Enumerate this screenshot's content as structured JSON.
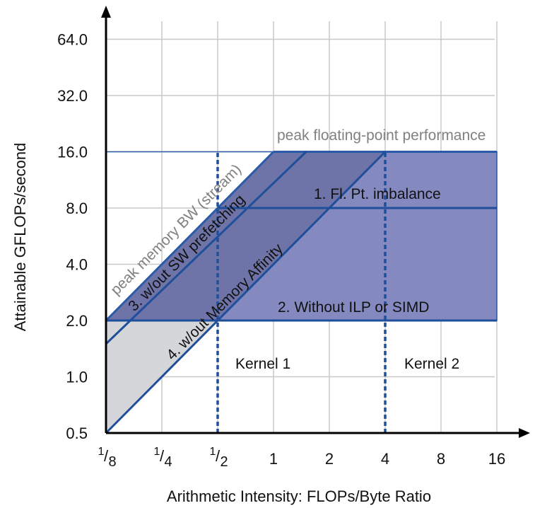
{
  "chart_data": {
    "type": "line",
    "xscale": "log2",
    "yscale": "log2",
    "xlim": [
      0.125,
      16
    ],
    "ylim": [
      0.5,
      64
    ],
    "grid": true,
    "xlabel": "Arithmetic Intensity: FLOPs/Byte Ratio",
    "ylabel": "Attainable GFLOPs/second",
    "x_ticks": [
      {
        "value": 0.125,
        "num": "1",
        "den": "8"
      },
      {
        "value": 0.25,
        "num": "1",
        "den": "4"
      },
      {
        "value": 0.5,
        "num": "1",
        "den": "2"
      },
      {
        "value": 1,
        "label": "1"
      },
      {
        "value": 2,
        "label": "2"
      },
      {
        "value": 4,
        "label": "4"
      },
      {
        "value": 8,
        "label": "8"
      },
      {
        "value": 16,
        "label": "16"
      }
    ],
    "y_ticks": [
      {
        "value": 0.5,
        "label": "0.5"
      },
      {
        "value": 1,
        "label": "1.0"
      },
      {
        "value": 2,
        "label": "2.0"
      },
      {
        "value": 4,
        "label": "4.0"
      },
      {
        "value": 8,
        "label": "8.0"
      },
      {
        "value": 16,
        "label": "16.0"
      },
      {
        "value": 32,
        "label": "32.0"
      },
      {
        "value": 64,
        "label": "64.0"
      }
    ],
    "regions": [
      {
        "points": [
          [
            0.125,
            2
          ],
          [
            0.5,
            2
          ],
          [
            0.125,
            0.5
          ]
        ],
        "color": "#d5d6da"
      },
      {
        "points": [
          [
            0.125,
            2
          ],
          [
            16,
            2
          ],
          [
            16,
            16
          ],
          [
            1,
            16
          ]
        ],
        "color": "#8489bf"
      },
      {
        "points": [
          [
            0.125,
            2
          ],
          [
            0.5,
            2
          ],
          [
            4,
            16
          ],
          [
            1,
            16
          ]
        ],
        "color": "#6f74a8"
      }
    ],
    "series": [
      {
        "name": "peak memory BW (stream)",
        "points": [
          [
            0.125,
            2
          ],
          [
            1,
            16
          ]
        ],
        "color": "#2a5ba8"
      },
      {
        "name": "peak floating-point performance",
        "points": [
          [
            1,
            16
          ],
          [
            16,
            16
          ]
        ],
        "color": "#2a5ba8"
      },
      {
        "name": "3. w/out SW prefetching",
        "points": [
          [
            0.125,
            1.5
          ],
          [
            1.5,
            16
          ]
        ],
        "color": "#1f4f9a"
      },
      {
        "name": "4. w/out Memory Affinity",
        "points": [
          [
            0.125,
            0.5
          ],
          [
            4,
            16
          ]
        ],
        "color": "#1f4f9a"
      },
      {
        "name": "1. Fl. Pt. imbalance",
        "points": [
          [
            0.5,
            8
          ],
          [
            16,
            8
          ]
        ],
        "color": "#1f4f9a"
      },
      {
        "name": "2. Without ILP or SIMD",
        "points": [
          [
            0.125,
            2
          ],
          [
            16,
            2
          ]
        ],
        "color": "#1f4f9a"
      }
    ],
    "kernels": [
      {
        "name": "Kernel 1",
        "x": 0.5
      },
      {
        "name": "Kernel 2",
        "x": 4
      }
    ],
    "annotations": [
      {
        "id": "peak-bw",
        "text": "peak memory BW (stream)",
        "color": "#808080"
      },
      {
        "id": "peak-fp",
        "text": "peak floating-point performance",
        "color": "#808080"
      },
      {
        "id": "no-prefetch",
        "text": "3. w/out SW prefetching",
        "color": "#111111"
      },
      {
        "id": "no-affinity",
        "text": "4. w/out Memory Affinity",
        "color": "#111111"
      },
      {
        "id": "fp-imbalance",
        "text": "1. Fl. Pt. imbalance",
        "color": "#111111"
      },
      {
        "id": "no-ilp",
        "text": "2. Without ILP or SIMD",
        "color": "#111111"
      },
      {
        "id": "kernel1",
        "text": "Kernel 1",
        "color": "#111111"
      },
      {
        "id": "kernel2",
        "text": "Kernel 2",
        "color": "#111111"
      }
    ]
  }
}
